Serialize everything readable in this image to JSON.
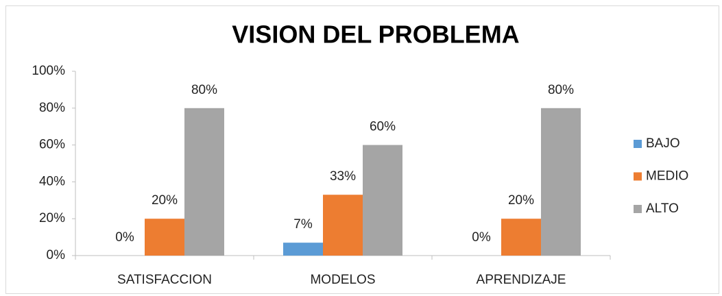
{
  "chart_data": {
    "type": "bar",
    "title": "VISION DEL PROBLEMA",
    "categories": [
      "SATISFACCION",
      "MODELOS",
      "APRENDIZAJE"
    ],
    "series": [
      {
        "name": "BAJO",
        "color": "#5b9bd5",
        "values": [
          0,
          7,
          0
        ],
        "value_labels": [
          "0%",
          "7%",
          "0%"
        ]
      },
      {
        "name": "MEDIO",
        "color": "#ed7d31",
        "values": [
          20,
          33,
          20
        ],
        "value_labels": [
          "20%",
          "33%",
          "20%"
        ]
      },
      {
        "name": "ALTO",
        "color": "#a5a5a5",
        "values": [
          80,
          60,
          80
        ],
        "value_labels": [
          "80%",
          "60%",
          "80%"
        ]
      }
    ],
    "ylim": [
      0,
      100
    ],
    "yticks": [
      {
        "value": 0,
        "label": "0%"
      },
      {
        "value": 20,
        "label": "20%"
      },
      {
        "value": 40,
        "label": "40%"
      },
      {
        "value": 60,
        "label": "60%"
      },
      {
        "value": 80,
        "label": "80%"
      },
      {
        "value": 100,
        "label": "100%"
      }
    ],
    "grid": false,
    "legend": "right"
  }
}
